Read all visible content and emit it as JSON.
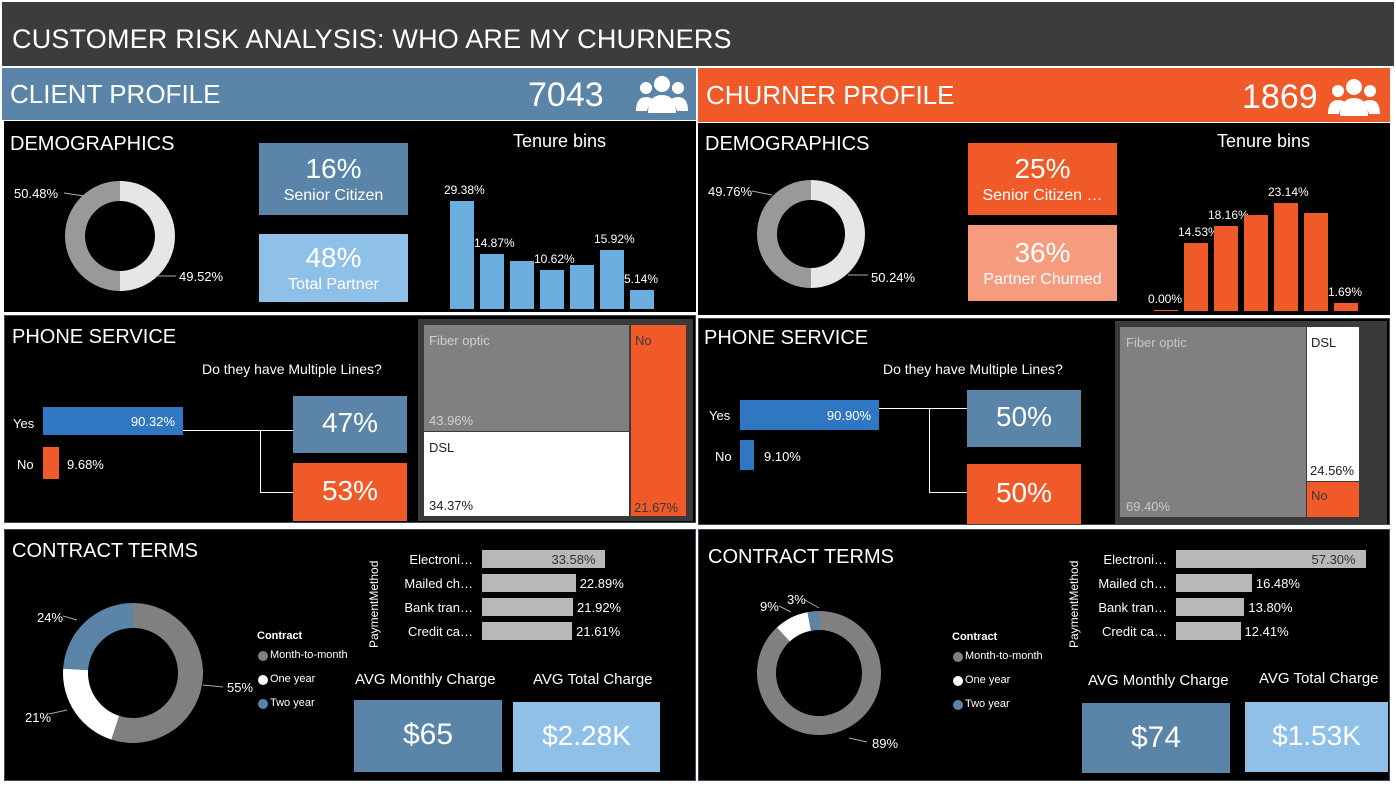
{
  "title": "CUSTOMER RISK ANALYSIS: WHO ARE MY CHURNERS",
  "client": {
    "header": "CLIENT PROFILE",
    "count": "7043",
    "demographics": {
      "title": "DEMOGRAPHICS",
      "donut": {
        "a": "50.48%",
        "b": "49.52%",
        "a_value": 50.48,
        "b_value": 49.52
      },
      "senior": {
        "value": "16%",
        "label": "Senior Citizen"
      },
      "partner": {
        "value": "48%",
        "label": "Total Partner"
      },
      "tenure": {
        "title": "Tenure bins",
        "values": [
          29.38,
          14.87,
          13.0,
          10.62,
          12.0,
          15.92,
          5.14
        ],
        "labels": [
          "29.38%",
          "14.87%",
          "",
          "10.62%",
          "",
          "15.92%",
          "5.14%"
        ]
      }
    },
    "phone": {
      "title": "PHONE SERVICE",
      "question": "Do they have Multiple Lines?",
      "yes_label": "Yes",
      "yes_value": "90.32%",
      "yes_num": 90.32,
      "no_label": "No",
      "no_value": "9.68%",
      "no_num": 9.68,
      "multi_yes": "47%",
      "multi_no": "53%",
      "internet": {
        "fiber_label": "Fiber optic",
        "fiber_value": "43.96%",
        "dsl_label": "DSL",
        "dsl_value": "34.37%",
        "no_label": "No",
        "no_value": "21.67%"
      }
    },
    "contract": {
      "title": "CONTRACT TERMS",
      "donut": {
        "m2m": "55%",
        "one": "21%",
        "two": "24%",
        "m2m_value": 55,
        "one_value": 21,
        "two_value": 24
      },
      "legend_title": "Contract",
      "legend": [
        "Month-to-month",
        "One year",
        "Two year"
      ],
      "payment_axis": "PaymentMethod",
      "payments": [
        {
          "label": "Electroni…",
          "value": "33.58%",
          "num": 33.58
        },
        {
          "label": "Mailed ch…",
          "value": "22.89%",
          "num": 22.89
        },
        {
          "label": "Bank tran…",
          "value": "21.92%",
          "num": 21.92
        },
        {
          "label": "Credit ca…",
          "value": "21.61%",
          "num": 21.61
        }
      ],
      "avg_monthly_label": "AVG Monthly Charge",
      "avg_monthly": "$65",
      "avg_total_label": "AVG Total Charge",
      "avg_total": "$2.28K"
    }
  },
  "churner": {
    "header": "CHURNER PROFILE",
    "count": "1869",
    "demographics": {
      "title": "DEMOGRAPHICS",
      "donut": {
        "a": "49.76%",
        "b": "50.24%",
        "a_value": 49.76,
        "b_value": 50.24
      },
      "senior": {
        "value": "25%",
        "label": "Senior Citizen …"
      },
      "partner": {
        "value": "36%",
        "label": "Partner Churned"
      },
      "tenure": {
        "title": "Tenure bins",
        "values": [
          0.0,
          14.53,
          18.16,
          20.5,
          23.14,
          21.0,
          1.69
        ],
        "labels": [
          "0.00%",
          "14.53%",
          "18.16%",
          "",
          "23.14%",
          "",
          "1.69%"
        ]
      }
    },
    "phone": {
      "title": "PHONE SERVICE",
      "question": "Do they have Multiple Lines?",
      "yes_label": "Yes",
      "yes_value": "90.90%",
      "yes_num": 90.9,
      "no_label": "No",
      "no_value": "9.10%",
      "no_num": 9.1,
      "multi_yes": "50%",
      "multi_no": "50%",
      "internet": {
        "fiber_label": "Fiber optic",
        "fiber_value": "69.40%",
        "dsl_label": "DSL",
        "dsl_value": "24.56%",
        "no_label": "No"
      }
    },
    "contract": {
      "title": "CONTRACT TERMS",
      "donut": {
        "m2m": "89%",
        "one": "9%",
        "two": "3%",
        "m2m_value": 89,
        "one_value": 9,
        "two_value": 3
      },
      "legend_title": "Contract",
      "legend": [
        "Month-to-month",
        "One year",
        "Two year"
      ],
      "payment_axis": "PaymentMethod",
      "payments": [
        {
          "label": "Electroni…",
          "value": "57.30%",
          "num": 57.3
        },
        {
          "label": "Mailed ch…",
          "value": "16.48%",
          "num": 16.48
        },
        {
          "label": "Bank tran…",
          "value": "13.80%",
          "num": 13.8
        },
        {
          "label": "Credit ca…",
          "value": "12.41%",
          "num": 12.41
        }
      ],
      "avg_monthly_label": "AVG Monthly Charge",
      "avg_monthly": "$74",
      "avg_total_label": "AVG Total Charge",
      "avg_total": "$1.53K"
    }
  },
  "colors": {
    "blue_header": "#5b85a8",
    "orange": "#f05a28",
    "light_blue": "#8fc1e8",
    "bar_blue": "#6aaee0",
    "deep_blue": "#2f77c2",
    "salmon": "#f69b7d",
    "gray": "#808080",
    "light_gray": "#e6e6e6"
  },
  "icons": {
    "people": "people-group-icon"
  }
}
